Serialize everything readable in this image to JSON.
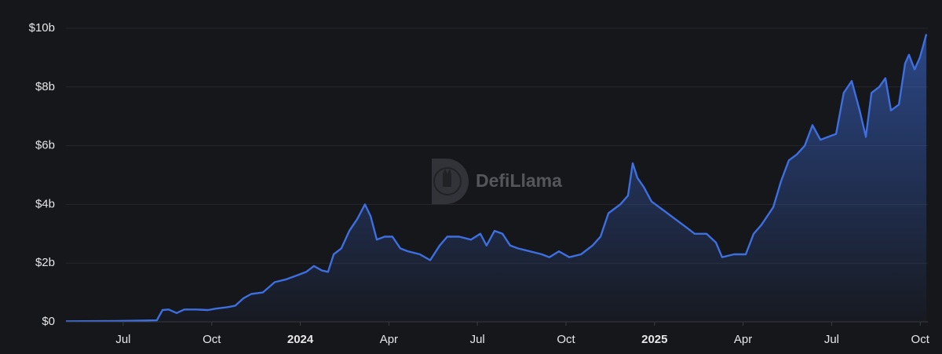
{
  "chart_data": {
    "type": "area",
    "watermark": "DefiLlama",
    "color": "#3d6fe0",
    "x": [
      -1.94,
      -0.19,
      1.14,
      1.33,
      1.54,
      1.81,
      2.07,
      2.47,
      2.87,
      3.14,
      3.54,
      3.8,
      4.07,
      4.34,
      4.73,
      5.13,
      5.53,
      5.93,
      6.2,
      6.46,
      6.73,
      6.94,
      7.13,
      7.39,
      7.66,
      7.93,
      8.19,
      8.38,
      8.59,
      8.86,
      9.12,
      9.39,
      9.65,
      10.05,
      10.4,
      10.72,
      10.98,
      11.38,
      11.78,
      12.1,
      12.31,
      12.58,
      12.85,
      13.11,
      13.38,
      13.78,
      14.18,
      14.44,
      14.76,
      15.11,
      15.51,
      15.9,
      16.17,
      16.44,
      16.84,
      17.1,
      17.26,
      17.42,
      17.63,
      17.9,
      18.3,
      18.7,
      19.1,
      19.36,
      19.76,
      20.08,
      20.29,
      20.69,
      21.09,
      21.36,
      21.62,
      22.02,
      22.29,
      22.55,
      22.82,
      23.09,
      23.35,
      23.62,
      23.88,
      24.15,
      24.41,
      24.68,
      24.95,
      25.16,
      25.35,
      25.61,
      25.82,
      26.01,
      26.28,
      26.49,
      26.62,
      26.81,
      26.99,
      27.1,
      27.21
    ],
    "values": [
      0.02,
      0.03,
      0.05,
      0.4,
      0.42,
      0.3,
      0.42,
      0.42,
      0.4,
      0.45,
      0.5,
      0.55,
      0.8,
      0.95,
      1.0,
      1.35,
      1.45,
      1.6,
      1.7,
      1.9,
      1.75,
      1.7,
      2.3,
      2.5,
      3.1,
      3.5,
      4.0,
      3.6,
      2.8,
      2.9,
      2.9,
      2.5,
      2.4,
      2.3,
      2.1,
      2.6,
      2.9,
      2.9,
      2.8,
      3.0,
      2.6,
      3.1,
      3.0,
      2.6,
      2.5,
      2.4,
      2.3,
      2.2,
      2.4,
      2.2,
      2.3,
      2.6,
      2.9,
      3.7,
      4.0,
      4.3,
      5.4,
      4.9,
      4.6,
      4.1,
      3.8,
      3.5,
      3.2,
      3.0,
      3.0,
      2.7,
      2.2,
      2.3,
      2.3,
      3.0,
      3.3,
      3.9,
      4.8,
      5.5,
      5.7,
      6.0,
      6.7,
      6.2,
      6.3,
      6.4,
      7.8,
      8.2,
      7.2,
      6.3,
      7.8,
      8.0,
      8.3,
      7.2,
      7.4,
      8.8,
      9.1,
      8.6,
      9.0,
      9.4,
      9.8
    ],
    "xlim": [
      -1.94,
      27.26
    ],
    "xticks": [
      {
        "value": 0,
        "label": "Jul"
      },
      {
        "value": 3,
        "label": "Oct"
      },
      {
        "value": 6,
        "label": "2024"
      },
      {
        "value": 9,
        "label": "Apr"
      },
      {
        "value": 12,
        "label": "Jul"
      },
      {
        "value": 15,
        "label": "Oct"
      },
      {
        "value": 18,
        "label": "2025"
      },
      {
        "value": 21,
        "label": "Apr"
      },
      {
        "value": 24,
        "label": "Jul"
      },
      {
        "value": 27,
        "label": "Oct"
      }
    ],
    "ylim": [
      0,
      10
    ],
    "yticks": [
      {
        "value": 0,
        "label": "$0"
      },
      {
        "value": 2,
        "label": "$2b"
      },
      {
        "value": 4,
        "label": "$4b"
      },
      {
        "value": 6,
        "label": "$6b"
      },
      {
        "value": 8,
        "label": "$8b"
      },
      {
        "value": 10,
        "label": "$10b"
      }
    ],
    "grid": true
  }
}
